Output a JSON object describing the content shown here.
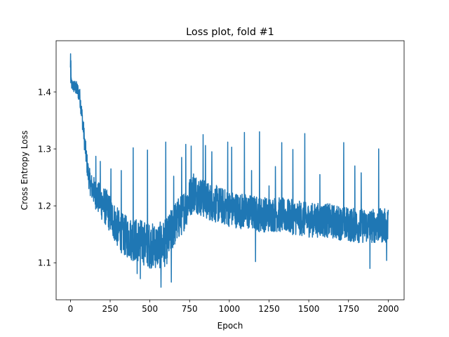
{
  "chart_data": {
    "type": "line",
    "title": "Loss plot, fold #1",
    "xlabel": "Epoch",
    "ylabel": "Cross Entropy Loss",
    "xlim": [
      -90,
      2100
    ],
    "ylim": [
      1.035,
      1.49
    ],
    "xticks": [
      0,
      250,
      500,
      750,
      1000,
      1250,
      1500,
      1750,
      2000
    ],
    "xtick_labels": [
      "0",
      "250",
      "500",
      "750",
      "1000",
      "1250",
      "1500",
      "1750",
      "2000"
    ],
    "yticks": [
      1.1,
      1.2,
      1.3,
      1.4
    ],
    "ytick_labels": [
      "1.1",
      "1.2",
      "1.3",
      "1.4"
    ],
    "grid": false,
    "series": [
      {
        "color": "#1f77b4",
        "anchors": {
          "x": [
            0,
            2,
            5,
            10,
            20,
            30,
            40,
            50,
            60,
            70,
            80,
            90,
            100,
            110,
            120,
            130,
            140,
            150,
            170,
            200,
            230,
            260,
            300,
            330,
            360,
            400,
            430,
            460,
            500,
            530,
            560,
            600,
            620,
            650,
            700,
            730,
            750,
            780,
            800,
            850,
            900,
            950,
            1000,
            1100,
            1200,
            1300,
            1400,
            1500,
            1600,
            1700,
            1800,
            1900,
            2000
          ],
          "y": [
            1.44,
            1.42,
            1.415,
            1.412,
            1.41,
            1.408,
            1.405,
            1.4,
            1.39,
            1.365,
            1.34,
            1.31,
            1.285,
            1.26,
            1.245,
            1.235,
            1.23,
            1.225,
            1.215,
            1.205,
            1.195,
            1.18,
            1.16,
            1.15,
            1.145,
            1.14,
            1.14,
            1.135,
            1.13,
            1.13,
            1.13,
            1.135,
            1.145,
            1.165,
            1.185,
            1.2,
            1.215,
            1.225,
            1.22,
            1.21,
            1.205,
            1.2,
            1.195,
            1.19,
            1.185,
            1.185,
            1.18,
            1.175,
            1.175,
            1.17,
            1.165,
            1.165,
            1.165
          ]
        },
        "noise": {
          "x": [
            0,
            100,
            200,
            400,
            600,
            750,
            1000,
            1500,
            2000
          ],
          "amplitude": [
            0.006,
            0.012,
            0.02,
            0.024,
            0.026,
            0.022,
            0.02,
            0.019,
            0.019
          ]
        },
        "spikes": [
          {
            "x": 1,
            "y": 1.467
          },
          {
            "x": 3,
            "y": 1.455
          },
          {
            "x": 160,
            "y": 1.287
          },
          {
            "x": 188,
            "y": 1.278
          },
          {
            "x": 255,
            "y": 1.265
          },
          {
            "x": 320,
            "y": 1.262
          },
          {
            "x": 395,
            "y": 1.302
          },
          {
            "x": 420,
            "y": 1.081
          },
          {
            "x": 440,
            "y": 1.072
          },
          {
            "x": 485,
            "y": 1.298
          },
          {
            "x": 570,
            "y": 1.057
          },
          {
            "x": 600,
            "y": 1.312
          },
          {
            "x": 635,
            "y": 1.066
          },
          {
            "x": 650,
            "y": 1.252
          },
          {
            "x": 700,
            "y": 1.285
          },
          {
            "x": 726,
            "y": 1.308
          },
          {
            "x": 760,
            "y": 1.305
          },
          {
            "x": 775,
            "y": 1.256
          },
          {
            "x": 835,
            "y": 1.325
          },
          {
            "x": 850,
            "y": 1.306
          },
          {
            "x": 890,
            "y": 1.295
          },
          {
            "x": 990,
            "y": 1.312
          },
          {
            "x": 1015,
            "y": 1.303
          },
          {
            "x": 1095,
            "y": 1.329
          },
          {
            "x": 1140,
            "y": 1.262
          },
          {
            "x": 1165,
            "y": 1.102
          },
          {
            "x": 1190,
            "y": 1.33
          },
          {
            "x": 1250,
            "y": 1.235
          },
          {
            "x": 1290,
            "y": 1.269
          },
          {
            "x": 1330,
            "y": 1.311
          },
          {
            "x": 1400,
            "y": 1.299
          },
          {
            "x": 1475,
            "y": 1.327
          },
          {
            "x": 1570,
            "y": 1.255
          },
          {
            "x": 1720,
            "y": 1.311
          },
          {
            "x": 1790,
            "y": 1.27
          },
          {
            "x": 1830,
            "y": 1.258
          },
          {
            "x": 1885,
            "y": 1.09
          },
          {
            "x": 1940,
            "y": 1.3
          },
          {
            "x": 1990,
            "y": 1.104
          }
        ]
      }
    ]
  }
}
